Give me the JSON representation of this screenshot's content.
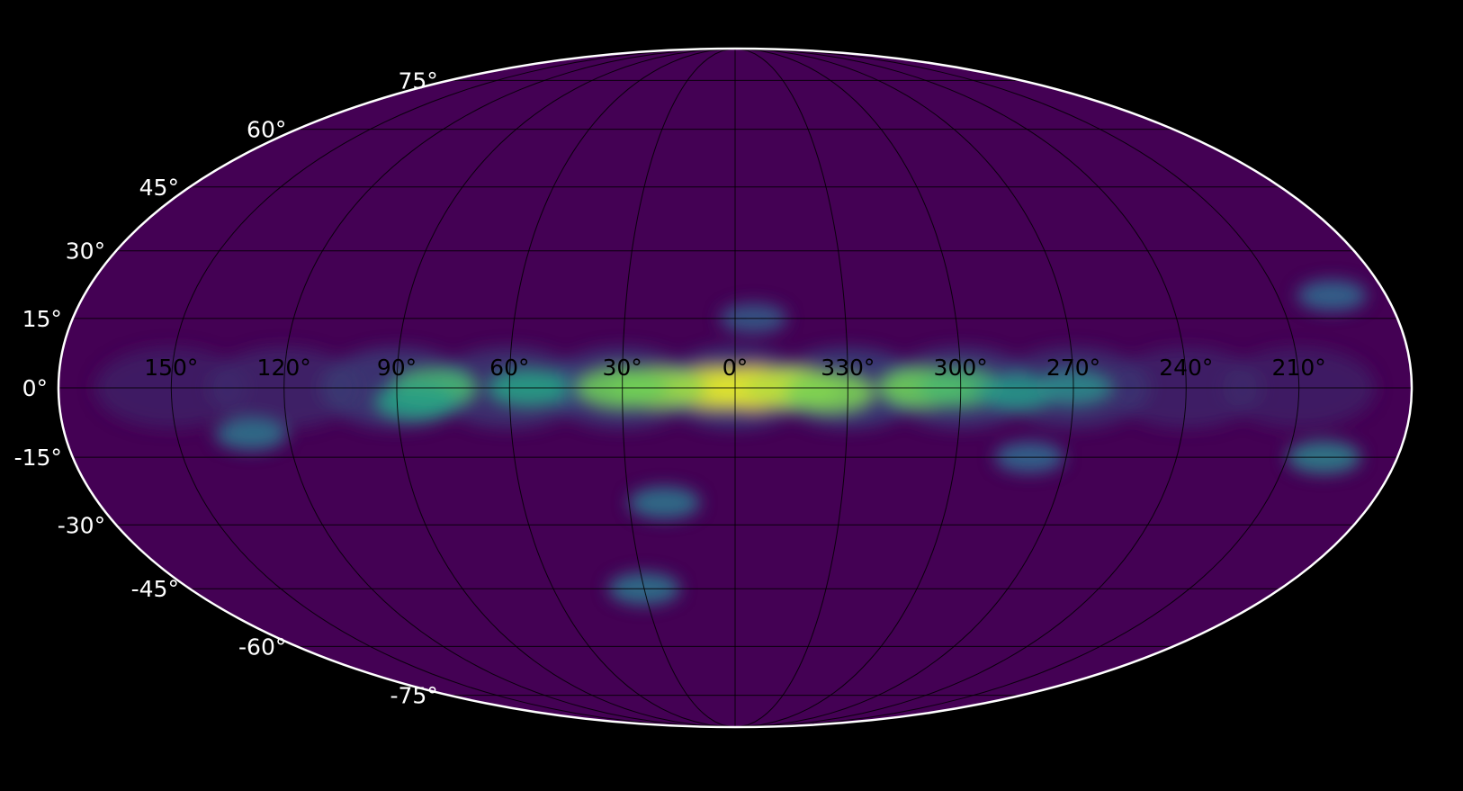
{
  "chart_data": {
    "type": "heatmap",
    "projection": "mollweide",
    "title": "",
    "xlabel": "",
    "ylabel": "",
    "colormap": "viridis",
    "background_color": "#000000",
    "frame_color": "#ffffff",
    "grid": true,
    "colors": {
      "low": "#440154",
      "mid": "#2a9c8a",
      "high": "#fde725"
    },
    "longitude_ticks": [
      {
        "value": 150,
        "label": "150°"
      },
      {
        "value": 120,
        "label": "120°"
      },
      {
        "value": 90,
        "label": "90°"
      },
      {
        "value": 60,
        "label": "60°"
      },
      {
        "value": 30,
        "label": "30°"
      },
      {
        "value": 0,
        "label": "0°"
      },
      {
        "value": 330,
        "label": "330°"
      },
      {
        "value": 300,
        "label": "300°"
      },
      {
        "value": 270,
        "label": "270°"
      },
      {
        "value": 240,
        "label": "240°"
      },
      {
        "value": 210,
        "label": "210°"
      }
    ],
    "latitude_ticks": [
      {
        "value": 75,
        "label": "75°"
      },
      {
        "value": 60,
        "label": "60°"
      },
      {
        "value": 45,
        "label": "45°"
      },
      {
        "value": 30,
        "label": "30°"
      },
      {
        "value": 15,
        "label": "15°"
      },
      {
        "value": 0,
        "label": "0°"
      },
      {
        "value": -15,
        "label": "-15°"
      },
      {
        "value": -30,
        "label": "-30°"
      },
      {
        "value": -45,
        "label": "-45°"
      },
      {
        "value": -60,
        "label": "-60°"
      },
      {
        "value": -75,
        "label": "-75°"
      }
    ],
    "intensity_peaks": [
      {
        "lon": 355,
        "lat": 0,
        "intensity": 1.0
      },
      {
        "lon": 5,
        "lat": 0,
        "intensity": 0.95
      },
      {
        "lon": 345,
        "lat": 0,
        "intensity": 0.9
      },
      {
        "lon": 20,
        "lat": 0,
        "intensity": 0.85
      },
      {
        "lon": 30,
        "lat": 0,
        "intensity": 0.8
      },
      {
        "lon": 335,
        "lat": -1,
        "intensity": 0.82
      },
      {
        "lon": 310,
        "lat": 0,
        "intensity": 0.8
      },
      {
        "lon": 300,
        "lat": 0,
        "intensity": 0.7
      },
      {
        "lon": 80,
        "lat": 0,
        "intensity": 0.7
      },
      {
        "lon": 85,
        "lat": -3,
        "intensity": 0.6
      },
      {
        "lon": 55,
        "lat": 0,
        "intensity": 0.6
      },
      {
        "lon": 285,
        "lat": -1,
        "intensity": 0.55
      },
      {
        "lon": 270,
        "lat": 0,
        "intensity": 0.5
      },
      {
        "lon": 200,
        "lat": -15,
        "intensity": 0.45
      },
      {
        "lon": 195,
        "lat": 20,
        "intensity": 0.35
      },
      {
        "lon": 30,
        "lat": -45,
        "intensity": 0.4
      },
      {
        "lon": 20,
        "lat": -25,
        "intensity": 0.4
      },
      {
        "lon": 130,
        "lat": -10,
        "intensity": 0.4
      },
      {
        "lon": 280,
        "lat": -15,
        "intensity": 0.35
      },
      {
        "lon": 355,
        "lat": 15,
        "intensity": 0.3
      }
    ]
  }
}
